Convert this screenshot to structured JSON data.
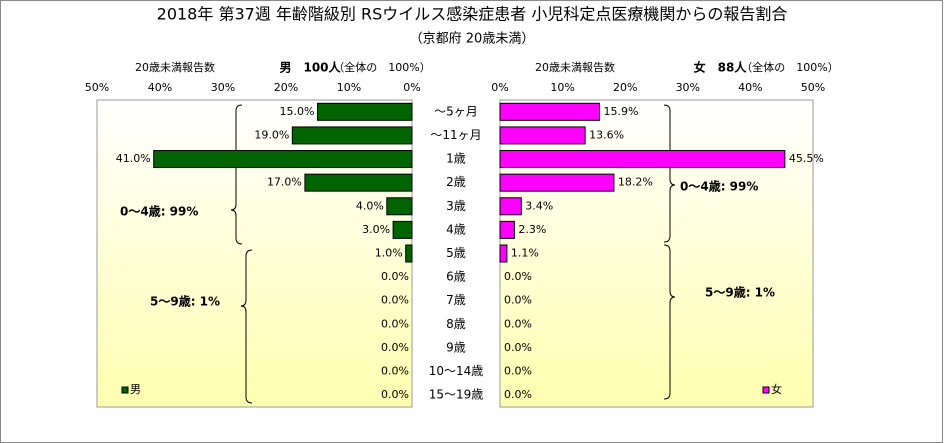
{
  "chart_data": [
    {
      "type": "bar",
      "title": "2018年 第37週 年齢階級別 RSウイルス感染症患者 小児科定点医療機関からの報告割合",
      "subtitle": "（京都府 20歳未満）",
      "header": [
        "20歳未満報告数",
        "男　100人",
        "（全体の　100%）"
      ],
      "categories": [
        "～5ヶ月",
        "～11ヶ月",
        "1歳",
        "2歳",
        "3歳",
        "4歳",
        "5歳",
        "6歳",
        "7歳",
        "8歳",
        "9歳",
        "10～14歳",
        "15～19歳"
      ],
      "series": [
        {
          "name": "男",
          "color": "#006400",
          "values": [
            15.0,
            19.0,
            41.0,
            17.0,
            4.0,
            3.0,
            1.0,
            0,
            0,
            0,
            0,
            0,
            0
          ],
          "value_labels": [
            "15.0%",
            "19.0%",
            "41.0%",
            "17.0%",
            "4.0%",
            "3.0%",
            "1.0%",
            "0.0%",
            "0.0%",
            "0.0%",
            "0.0%",
            "0.0%",
            "0.0%"
          ]
        }
      ],
      "xlim": [
        50,
        0
      ],
      "xticks": [
        {
          "value": 50,
          "label": "50%"
        },
        {
          "value": 40,
          "label": "40%"
        },
        {
          "value": 30,
          "label": "30%"
        },
        {
          "value": 20,
          "label": "20%"
        },
        {
          "value": 10,
          "label": "10%"
        },
        {
          "value": 0,
          "label": "0%"
        }
      ],
      "annotations": [
        "0～4歳: 99%",
        "5～9歳: 1%"
      ],
      "legend": "bottom-left"
    },
    {
      "type": "bar",
      "header": [
        "20歳未満報告数",
        "女　88人",
        "（全体の　100%）"
      ],
      "series": [
        {
          "name": "女",
          "color": "#ff00ff",
          "values": [
            15.9,
            13.6,
            45.5,
            18.2,
            3.4,
            2.3,
            1.1,
            0,
            0,
            0,
            0,
            0,
            0
          ],
          "value_labels": [
            "15.9%",
            "13.6%",
            "45.5%",
            "18.2%",
            "3.4%",
            "2.3%",
            "1.1%",
            "0.0%",
            "0.0%",
            "0.0%",
            "0.0%",
            "0.0%",
            "0.0%"
          ]
        }
      ],
      "xlim": [
        0,
        50
      ],
      "xticks": [
        {
          "value": 0,
          "label": "0%"
        },
        {
          "value": 10,
          "label": "10%"
        },
        {
          "value": 20,
          "label": "20%"
        },
        {
          "value": 30,
          "label": "30%"
        },
        {
          "value": 40,
          "label": "40%"
        },
        {
          "value": 50,
          "label": "50%"
        }
      ],
      "annotations": [
        "0～4歳: 99%",
        "5～9歳: 1%"
      ],
      "legend": "bottom-right"
    }
  ]
}
